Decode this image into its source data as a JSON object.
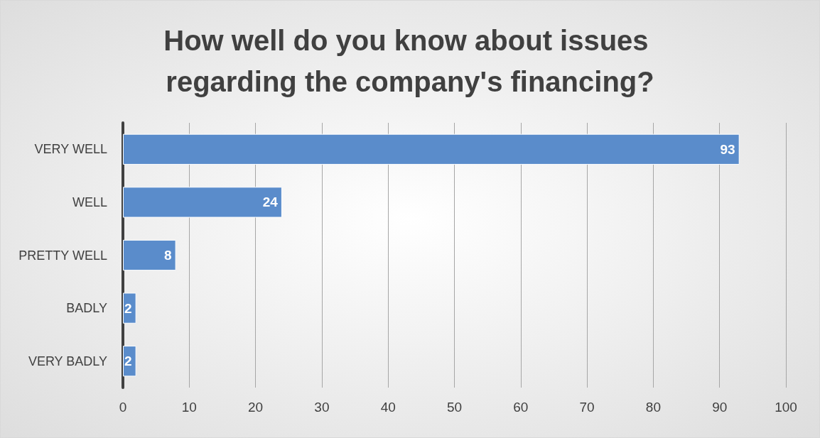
{
  "chart_data": {
    "type": "bar",
    "orientation": "horizontal",
    "title": "How well do you know about issues regarding the company's financing?",
    "categories": [
      "VERY WELL",
      "WELL",
      "PRETTY WELL",
      "BADLY",
      "VERY BADLY"
    ],
    "values": [
      93,
      24,
      8,
      2,
      2
    ],
    "color": "#5a8ccb",
    "xlim": [
      0,
      100
    ],
    "xticks": [
      0,
      10,
      20,
      30,
      40,
      50,
      60,
      70,
      80,
      90,
      100
    ],
    "grid": "x",
    "data_labels": true
  }
}
